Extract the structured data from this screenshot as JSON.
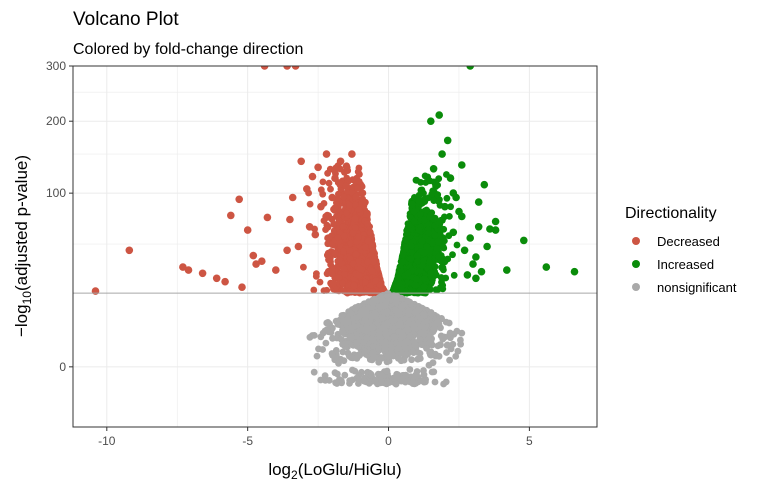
{
  "chart_data": {
    "type": "scatter",
    "title": "Volcano Plot",
    "subtitle": "Colored by fold-change direction",
    "xlabel": {
      "prefix": "log",
      "sub": "2",
      "open": "(",
      "num": "LoGlu",
      "slash": "/",
      "den": "HiGlu",
      "close": ")"
    },
    "ylabel": {
      "prefix": "−log",
      "sub": "10",
      "rest": "(adjusted p-value)"
    },
    "x_ticks": [
      {
        "value": -10,
        "label": "-10"
      },
      {
        "value": -5,
        "label": "-5"
      },
      {
        "value": 0,
        "label": "0"
      },
      {
        "value": 5,
        "label": "5"
      }
    ],
    "y_ticks": [
      {
        "value": 0,
        "label": "0"
      },
      {
        "value": 100,
        "label": "100"
      },
      {
        "value": 200,
        "label": "200"
      },
      {
        "value": 300,
        "label": "300"
      }
    ],
    "xlim": [
      -11.2,
      7.4
    ],
    "ylim_display": [
      -12,
      300
    ],
    "threshold_y": 18,
    "grid": true,
    "legend": {
      "title": "Directionality",
      "position": "right",
      "entries": [
        {
          "label": "Decreased",
          "color": "#CD5543"
        },
        {
          "label": "Increased",
          "color": "#0A8C0A"
        },
        {
          "label": "nonsignificant",
          "color": "#A9A9A9"
        }
      ]
    },
    "series": [
      {
        "name": "Decreased",
        "color": "#CD5543",
        "points": [
          [
            -10.4,
            19
          ],
          [
            -9.2,
            45
          ],
          [
            -7.3,
            33
          ],
          [
            -7.1,
            31
          ],
          [
            -6.6,
            29
          ],
          [
            -6.1,
            26
          ],
          [
            -5.8,
            24
          ],
          [
            -5.2,
            21
          ],
          [
            -4.8,
            41
          ],
          [
            -4.7,
            35
          ],
          [
            -4.5,
            37
          ],
          [
            -5.3,
            93
          ],
          [
            -5.6,
            76
          ],
          [
            -5.0,
            62
          ],
          [
            -4.3,
            74
          ],
          [
            -4.0,
            31
          ],
          [
            -3.6,
            45
          ],
          [
            -3.4,
            95
          ],
          [
            -2.7,
            120
          ],
          [
            -2.5,
            132
          ],
          [
            -2.2,
            150
          ],
          [
            -1.9,
            118
          ],
          [
            -1.5,
            108
          ],
          [
            -1.3,
            150
          ],
          [
            -2.9,
            105
          ],
          [
            -3.6,
            300
          ],
          [
            -3.3,
            300
          ],
          [
            -4.4,
            300
          ],
          [
            -3.2,
            48
          ],
          [
            -2.8,
            65
          ],
          [
            -2.0,
            95
          ],
          [
            -3.1,
            140
          ],
          [
            -2.4,
            85
          ],
          [
            -1.7,
            140
          ],
          [
            -3.5,
            72
          ],
          [
            -2.6,
            58
          ]
        ]
      },
      {
        "name": "Increased",
        "color": "#0A8C0A",
        "points": [
          [
            6.6,
            30
          ],
          [
            5.6,
            33
          ],
          [
            4.8,
            53
          ],
          [
            4.2,
            31
          ],
          [
            3.8,
            62
          ],
          [
            3.6,
            63
          ],
          [
            3.8,
            70
          ],
          [
            3.4,
            110
          ],
          [
            3.2,
            90
          ],
          [
            2.6,
            135
          ],
          [
            2.1,
            170
          ],
          [
            1.8,
            210
          ],
          [
            1.5,
            200
          ],
          [
            2.9,
            300
          ],
          [
            3.1,
            40
          ],
          [
            2.7,
            45
          ],
          [
            2.9,
            55
          ],
          [
            2.5,
            80
          ],
          [
            2.3,
            100
          ],
          [
            2.2,
            118
          ],
          [
            3.1,
            26
          ],
          [
            3.5,
            48
          ],
          [
            2.8,
            28
          ],
          [
            3.0,
            35
          ],
          [
            2.3,
            60
          ],
          [
            1.9,
            150
          ],
          [
            1.6,
            130
          ],
          [
            2.4,
            95
          ],
          [
            2.6,
            75
          ],
          [
            3.3,
            30
          ],
          [
            2.0,
            85
          ],
          [
            3.2,
            65
          ]
        ]
      }
    ],
    "clouds": [
      {
        "name": "Decreased",
        "side": -1,
        "y_start": 18,
        "count": 1800,
        "spread": 0.7,
        "y_scale": 22,
        "seed": 11
      },
      {
        "name": "Increased",
        "side": 1,
        "y_start": 18,
        "count": 1800,
        "spread": 0.55,
        "y_scale": 20,
        "seed": 23
      },
      {
        "name": "nonsignificant",
        "count": 1400,
        "seed": 37
      }
    ]
  }
}
